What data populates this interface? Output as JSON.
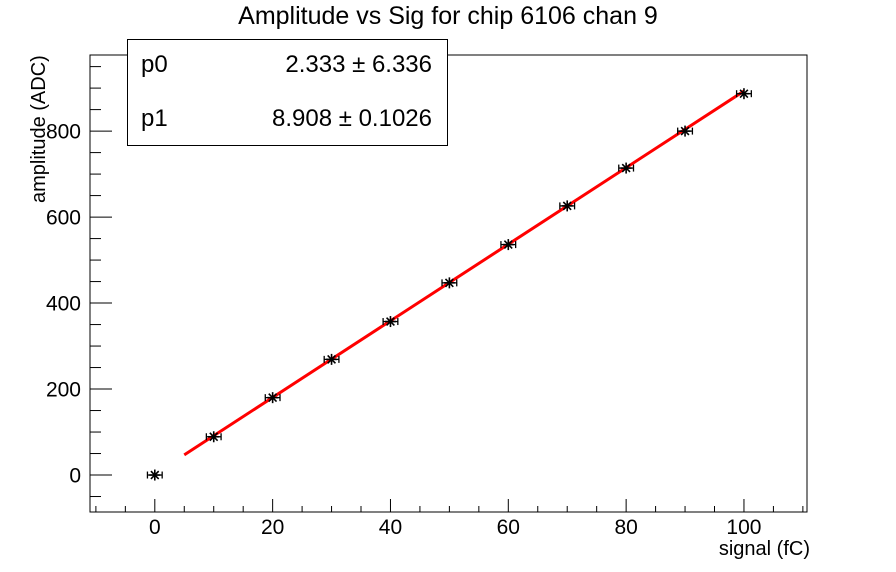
{
  "colors": {
    "background": "#ffffff",
    "frame": "#000000",
    "marker": "#000000",
    "fit_line": "#ff0000",
    "text": "#000000"
  },
  "stats": {
    "rows": [
      {
        "label": "p0",
        "value": "2.333 ± 6.336"
      },
      {
        "label": "p1",
        "value": "8.908 ± 0.1026"
      }
    ]
  },
  "chart_data": {
    "type": "scatter",
    "title": "Amplitude vs Sig for chip 6106 chan 9",
    "xlabel": "signal (fC)",
    "ylabel": "amplitude (ADC)",
    "x": [
      0,
      10,
      20,
      30,
      40,
      50,
      60,
      70,
      80,
      90,
      100
    ],
    "y": [
      0,
      89,
      180,
      269,
      357,
      447,
      536,
      626,
      714,
      800,
      887
    ],
    "x_error": 1.25,
    "xlim": [
      -11,
      110.7
    ],
    "ylim": [
      -86,
      977
    ],
    "x_major_ticks": [
      0,
      20,
      40,
      60,
      80,
      100
    ],
    "x_minor_step": 5,
    "y_major_ticks": [
      0,
      200,
      400,
      600,
      800
    ],
    "y_minor_step": 50,
    "grid": false,
    "legend_position": "top-left stats box",
    "marker": {
      "style": "asterisk",
      "color": "#000000"
    },
    "fit": {
      "model": "p0 + p1*x",
      "p0": 2.333,
      "p0_err": 6.336,
      "p1": 8.908,
      "p1_err": 0.1026,
      "range": [
        5,
        100
      ],
      "line_color": "#ff0000",
      "line_width": 3
    }
  }
}
